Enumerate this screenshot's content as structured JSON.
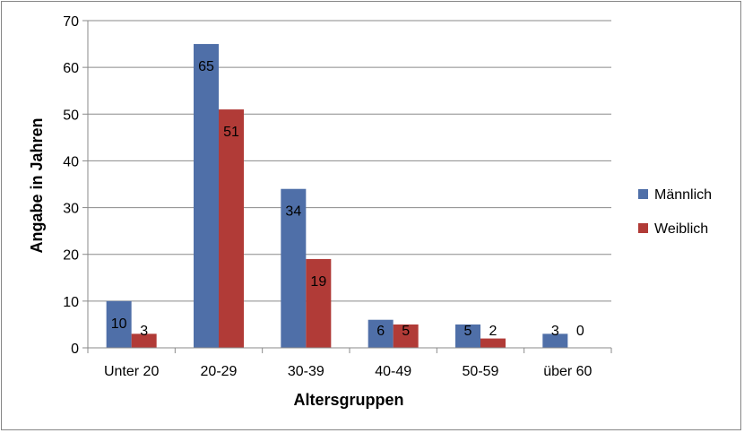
{
  "chart_data": {
    "type": "bar",
    "categories": [
      "Unter 20",
      "20-29",
      "30-39",
      "40-49",
      "50-59",
      "über 60"
    ],
    "series": [
      {
        "name": "Männlich",
        "values": [
          10,
          65,
          34,
          6,
          5,
          3
        ],
        "color": "#4F6FA8"
      },
      {
        "name": "Weiblich",
        "values": [
          3,
          51,
          19,
          5,
          2,
          0
        ],
        "color": "#B13B37"
      }
    ],
    "xlabel": "Altersgruppen",
    "ylabel": "Angabe in Jahren",
    "ylim": [
      0,
      70
    ],
    "yticks": [
      0,
      10,
      20,
      30,
      40,
      50,
      60,
      70
    ],
    "grid": true,
    "legend_position": "right"
  }
}
